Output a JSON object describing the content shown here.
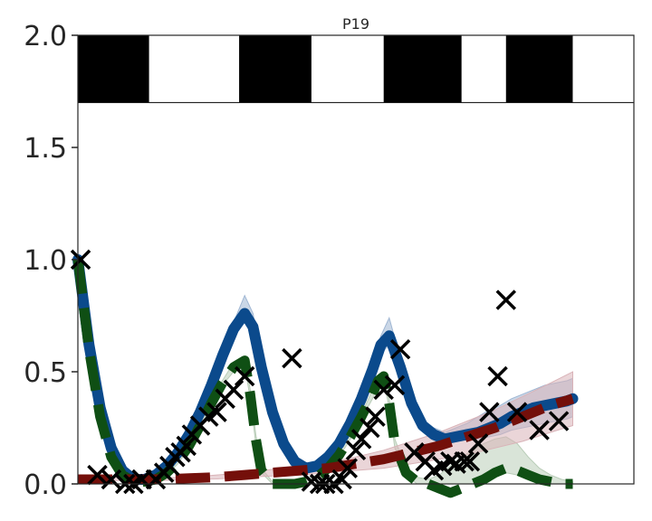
{
  "chart_data": {
    "type": "line",
    "title": "P19",
    "xlabel": "",
    "ylabel": "",
    "xlim": [
      0,
      1
    ],
    "ylim": [
      0,
      2.0
    ],
    "yticks": [
      "0.0",
      "0.5",
      "1.0",
      "1.5",
      "2.0"
    ],
    "ytick_values": [
      0,
      0.5,
      1.0,
      1.5,
      2.0
    ],
    "grid": false,
    "light_dark_bar": {
      "y_range": [
        1.7,
        2.0
      ],
      "dark_color": "#000000",
      "dark_intervals": [
        [
          0,
          0.128
        ],
        [
          0.29,
          0.42
        ],
        [
          0.55,
          0.69
        ],
        [
          0.77,
          0.89
        ]
      ]
    },
    "series": [
      {
        "style": "solid-band",
        "color": "#0b4a8c",
        "band_color": "#9fb6d3",
        "x": [
          0,
          0.02,
          0.04,
          0.06,
          0.08,
          0.1,
          0.12,
          0.14,
          0.16,
          0.18,
          0.2,
          0.22,
          0.24,
          0.26,
          0.28,
          0.3,
          0.315,
          0.33,
          0.35,
          0.37,
          0.39,
          0.41,
          0.43,
          0.45,
          0.47,
          0.49,
          0.51,
          0.53,
          0.545,
          0.56,
          0.58,
          0.6,
          0.62,
          0.64,
          0.66,
          0.68,
          0.7,
          0.72,
          0.74,
          0.76,
          0.78,
          0.8,
          0.82,
          0.84,
          0.86,
          0.88,
          0.89
        ],
        "y": [
          1.0,
          0.62,
          0.34,
          0.16,
          0.06,
          0.02,
          0.02,
          0.04,
          0.08,
          0.14,
          0.22,
          0.32,
          0.44,
          0.57,
          0.69,
          0.76,
          0.7,
          0.52,
          0.32,
          0.18,
          0.1,
          0.07,
          0.08,
          0.12,
          0.18,
          0.27,
          0.38,
          0.51,
          0.62,
          0.66,
          0.52,
          0.36,
          0.26,
          0.22,
          0.2,
          0.21,
          0.22,
          0.23,
          0.25,
          0.27,
          0.3,
          0.32,
          0.34,
          0.35,
          0.36,
          0.37,
          0.38
        ],
        "band_low": [
          1.0,
          0.61,
          0.33,
          0.15,
          0.05,
          0.01,
          0.01,
          0.03,
          0.07,
          0.13,
          0.21,
          0.3,
          0.42,
          0.54,
          0.66,
          0.72,
          0.66,
          0.49,
          0.3,
          0.16,
          0.09,
          0.06,
          0.07,
          0.11,
          0.17,
          0.25,
          0.36,
          0.48,
          0.58,
          0.62,
          0.48,
          0.33,
          0.24,
          0.2,
          0.18,
          0.19,
          0.2,
          0.2,
          0.21,
          0.22,
          0.24,
          0.25,
          0.26,
          0.27,
          0.28,
          0.29,
          0.3
        ],
        "band_high": [
          1.0,
          0.63,
          0.35,
          0.17,
          0.07,
          0.03,
          0.03,
          0.05,
          0.09,
          0.15,
          0.23,
          0.34,
          0.46,
          0.6,
          0.72,
          0.84,
          0.76,
          0.55,
          0.34,
          0.2,
          0.11,
          0.08,
          0.09,
          0.13,
          0.19,
          0.29,
          0.4,
          0.54,
          0.66,
          0.74,
          0.56,
          0.39,
          0.29,
          0.25,
          0.23,
          0.25,
          0.27,
          0.3,
          0.33,
          0.35,
          0.38,
          0.4,
          0.42,
          0.44,
          0.45,
          0.46,
          0.47
        ]
      },
      {
        "style": "dashed-band",
        "color": "#0f4f14",
        "band_color": "#b9cdb8",
        "x": [
          0,
          0.02,
          0.04,
          0.06,
          0.08,
          0.1,
          0.12,
          0.14,
          0.16,
          0.18,
          0.2,
          0.22,
          0.24,
          0.26,
          0.28,
          0.3,
          0.31,
          0.32,
          0.33,
          0.35,
          0.37,
          0.39,
          0.41,
          0.43,
          0.45,
          0.47,
          0.49,
          0.51,
          0.53,
          0.54,
          0.55,
          0.56,
          0.57,
          0.59,
          0.61,
          0.63,
          0.65,
          0.67,
          0.69,
          0.71,
          0.73,
          0.75,
          0.77,
          0.79,
          0.81,
          0.83,
          0.85,
          0.87,
          0.89
        ],
        "y": [
          1.0,
          0.6,
          0.3,
          0.12,
          0.04,
          0.01,
          0.01,
          0.02,
          0.05,
          0.1,
          0.17,
          0.26,
          0.36,
          0.45,
          0.52,
          0.55,
          0.4,
          0.2,
          0.06,
          0.0,
          0.0,
          0.0,
          0.01,
          0.03,
          0.07,
          0.13,
          0.21,
          0.3,
          0.4,
          0.46,
          0.48,
          0.36,
          0.18,
          0.05,
          0.01,
          0.0,
          -0.02,
          -0.04,
          -0.02,
          0.0,
          0.02,
          0.05,
          0.07,
          0.06,
          0.04,
          0.02,
          0.01,
          0.0,
          0.0
        ],
        "band_low": [
          1.0,
          0.59,
          0.29,
          0.11,
          0.03,
          0.0,
          0.0,
          0.01,
          0.04,
          0.09,
          0.16,
          0.25,
          0.35,
          0.44,
          0.5,
          0.53,
          0.38,
          0.18,
          0.05,
          0.0,
          0.0,
          0.0,
          0.0,
          0.02,
          0.06,
          0.12,
          0.2,
          0.29,
          0.38,
          0.44,
          0.46,
          0.34,
          0.16,
          0.04,
          0.0,
          0.0,
          0.0,
          0.0,
          0.0,
          0.0,
          0.01,
          0.03,
          0.05,
          0.04,
          0.03,
          0.01,
          0.0,
          0.0,
          0.0
        ],
        "band_high": [
          1.0,
          0.61,
          0.31,
          0.13,
          0.05,
          0.02,
          0.02,
          0.03,
          0.06,
          0.11,
          0.18,
          0.27,
          0.37,
          0.46,
          0.54,
          0.57,
          0.42,
          0.22,
          0.07,
          0.01,
          0.01,
          0.01,
          0.02,
          0.04,
          0.08,
          0.14,
          0.22,
          0.31,
          0.42,
          0.48,
          0.5,
          0.38,
          0.2,
          0.07,
          0.03,
          0.02,
          0.04,
          0.08,
          0.12,
          0.15,
          0.18,
          0.2,
          0.21,
          0.18,
          0.12,
          0.07,
          0.04,
          0.02,
          0.01
        ]
      },
      {
        "style": "dashed-band",
        "color": "#740f0a",
        "band_color": "#d9b3b8",
        "x": [
          0,
          0.05,
          0.1,
          0.15,
          0.2,
          0.25,
          0.3,
          0.35,
          0.4,
          0.45,
          0.5,
          0.55,
          0.6,
          0.65,
          0.7,
          0.75,
          0.8,
          0.85,
          0.89
        ],
        "y": [
          0.02,
          0.02,
          0.02,
          0.02,
          0.025,
          0.03,
          0.04,
          0.05,
          0.06,
          0.07,
          0.09,
          0.11,
          0.14,
          0.17,
          0.21,
          0.25,
          0.3,
          0.35,
          0.38
        ],
        "band_low": [
          0.015,
          0.015,
          0.015,
          0.015,
          0.02,
          0.022,
          0.03,
          0.035,
          0.04,
          0.05,
          0.06,
          0.07,
          0.09,
          0.11,
          0.13,
          0.16,
          0.19,
          0.23,
          0.26
        ],
        "band_high": [
          0.025,
          0.025,
          0.025,
          0.027,
          0.03,
          0.04,
          0.05,
          0.065,
          0.08,
          0.095,
          0.12,
          0.15,
          0.19,
          0.23,
          0.28,
          0.33,
          0.39,
          0.45,
          0.5
        ]
      }
    ],
    "markers": {
      "symbol": "x",
      "color": "#000000",
      "x": [
        0.005,
        0.035,
        0.06,
        0.085,
        0.1,
        0.115,
        0.14,
        0.155,
        0.165,
        0.175,
        0.185,
        0.195,
        0.205,
        0.22,
        0.235,
        0.25,
        0.265,
        0.28,
        0.3,
        0.385,
        0.42,
        0.435,
        0.445,
        0.46,
        0.475,
        0.485,
        0.5,
        0.51,
        0.525,
        0.535,
        0.55,
        0.57,
        0.58,
        0.605,
        0.625,
        0.64,
        0.655,
        0.67,
        0.68,
        0.695,
        0.705,
        0.72,
        0.74,
        0.755,
        0.77,
        0.79,
        0.83,
        0.865
      ],
      "y": [
        1.0,
        0.04,
        0.02,
        0.0,
        0.0,
        0.02,
        0.02,
        0.05,
        0.08,
        0.12,
        0.14,
        0.17,
        0.22,
        0.26,
        0.3,
        0.32,
        0.38,
        0.42,
        0.48,
        0.56,
        0.01,
        0.0,
        0.0,
        0.0,
        0.02,
        0.07,
        0.15,
        0.2,
        0.25,
        0.3,
        0.42,
        0.44,
        0.6,
        0.14,
        0.1,
        0.06,
        0.08,
        0.1,
        0.09,
        0.1,
        0.1,
        0.18,
        0.32,
        0.48,
        0.82,
        0.32,
        0.24,
        0.28
      ]
    }
  }
}
